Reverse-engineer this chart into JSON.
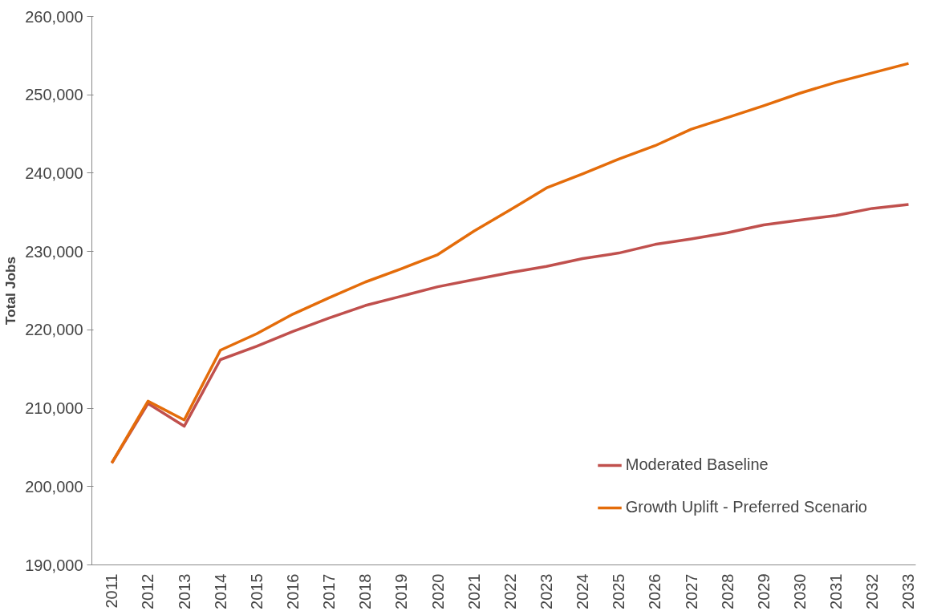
{
  "chart_data": {
    "type": "line",
    "ylabel": "Total Jobs",
    "categories": [
      "2011",
      "2012",
      "2013",
      "2014",
      "2015",
      "2016",
      "2017",
      "2018",
      "2019",
      "2020",
      "2021",
      "2022",
      "2023",
      "2024",
      "2025",
      "2026",
      "2027",
      "2028",
      "2029",
      "2030",
      "2031",
      "2032",
      "2033"
    ],
    "series": [
      {
        "name": "Moderated Baseline",
        "color": "#c0504d",
        "values": [
          203000,
          210600,
          207700,
          216200,
          217900,
          219800,
          221500,
          223100,
          224300,
          225500,
          226400,
          227300,
          228100,
          229100,
          229800,
          230900,
          231600,
          232400,
          233400,
          234000,
          234600,
          235500,
          236000
        ]
      },
      {
        "name": "Growth Uplift - Preferred Scenario",
        "color": "#e46c0a",
        "values": [
          203000,
          210900,
          208500,
          217400,
          219500,
          222000,
          224100,
          226100,
          227800,
          229600,
          232600,
          235300,
          238100,
          239900,
          241800,
          243500,
          245600,
          247100,
          248600,
          250200,
          251600,
          252800,
          254000
        ]
      }
    ],
    "ylim": [
      190000,
      260000
    ],
    "yticks": [
      {
        "value": 190000,
        "label": "190,000"
      },
      {
        "value": 200000,
        "label": "200,000"
      },
      {
        "value": 210000,
        "label": "210,000"
      },
      {
        "value": 220000,
        "label": "220,000"
      },
      {
        "value": 230000,
        "label": "230,000"
      },
      {
        "value": 240000,
        "label": "240,000"
      },
      {
        "value": 250000,
        "label": "250,000"
      },
      {
        "value": 260000,
        "label": "260,000"
      }
    ],
    "grid": false,
    "legend": "bottom right",
    "marker": "none",
    "line_style": "solid"
  }
}
